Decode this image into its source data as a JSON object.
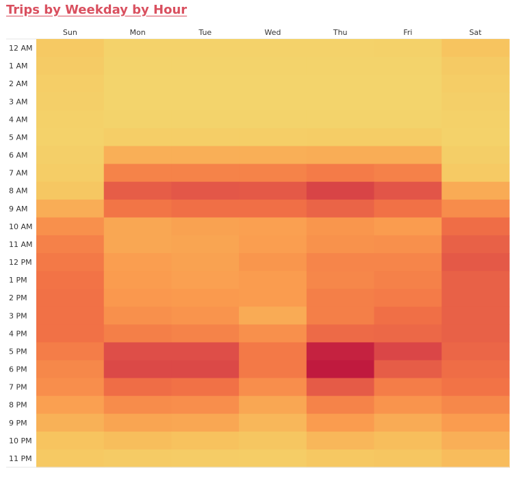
{
  "chart_data": {
    "type": "heatmap",
    "title": "Trips by Weekday by Hour",
    "columns": [
      "Sun",
      "Mon",
      "Tue",
      "Wed",
      "Thu",
      "Fri",
      "Sat"
    ],
    "rows": [
      "12 AM",
      "1 AM",
      "2 AM",
      "3 AM",
      "4 AM",
      "5 AM",
      "6 AM",
      "7 AM",
      "8 AM",
      "9 AM",
      "10 AM",
      "11 AM",
      "12 PM",
      "1 PM",
      "2 PM",
      "3 PM",
      "4 PM",
      "5 PM",
      "6 PM",
      "7 PM",
      "8 PM",
      "9 PM",
      "10 PM",
      "11 PM"
    ],
    "values": [
      [
        0.14,
        0.03,
        0.03,
        0.03,
        0.03,
        0.04,
        0.2
      ],
      [
        0.11,
        0.01,
        0.01,
        0.01,
        0.01,
        0.01,
        0.12
      ],
      [
        0.08,
        0.0,
        0.0,
        0.0,
        0.0,
        0.0,
        0.09
      ],
      [
        0.06,
        0.0,
        0.0,
        0.0,
        0.0,
        0.0,
        0.06
      ],
      [
        0.04,
        0.01,
        0.01,
        0.01,
        0.01,
        0.01,
        0.04
      ],
      [
        0.03,
        0.08,
        0.08,
        0.08,
        0.09,
        0.09,
        0.03
      ],
      [
        0.06,
        0.3,
        0.3,
        0.3,
        0.31,
        0.31,
        0.07
      ],
      [
        0.09,
        0.52,
        0.52,
        0.52,
        0.56,
        0.53,
        0.13
      ],
      [
        0.16,
        0.72,
        0.75,
        0.74,
        0.84,
        0.76,
        0.32
      ],
      [
        0.31,
        0.59,
        0.62,
        0.62,
        0.68,
        0.61,
        0.47
      ],
      [
        0.45,
        0.34,
        0.36,
        0.37,
        0.42,
        0.39,
        0.63
      ],
      [
        0.53,
        0.34,
        0.35,
        0.38,
        0.44,
        0.45,
        0.7
      ],
      [
        0.57,
        0.38,
        0.36,
        0.42,
        0.51,
        0.51,
        0.74
      ],
      [
        0.6,
        0.39,
        0.37,
        0.39,
        0.5,
        0.53,
        0.7
      ],
      [
        0.61,
        0.41,
        0.4,
        0.39,
        0.54,
        0.56,
        0.7
      ],
      [
        0.61,
        0.45,
        0.43,
        0.32,
        0.54,
        0.62,
        0.7
      ],
      [
        0.61,
        0.54,
        0.52,
        0.45,
        0.65,
        0.66,
        0.7
      ],
      [
        0.55,
        0.8,
        0.8,
        0.57,
        0.97,
        0.83,
        0.67
      ],
      [
        0.49,
        0.82,
        0.82,
        0.57,
        1.0,
        0.72,
        0.63
      ],
      [
        0.46,
        0.63,
        0.61,
        0.46,
        0.73,
        0.55,
        0.6
      ],
      [
        0.37,
        0.47,
        0.46,
        0.34,
        0.52,
        0.43,
        0.49
      ],
      [
        0.29,
        0.35,
        0.34,
        0.26,
        0.39,
        0.32,
        0.39
      ],
      [
        0.2,
        0.23,
        0.21,
        0.17,
        0.26,
        0.23,
        0.3
      ],
      [
        0.14,
        0.11,
        0.1,
        0.09,
        0.15,
        0.17,
        0.24
      ]
    ],
    "scale": "relative trip volume, 0 = lowest, 1 = highest",
    "color_scale": [
      "#f3d46c",
      "#f7c45f",
      "#fa9a4e",
      "#f27346",
      "#de4e48",
      "#c01a3e"
    ],
    "grid": false,
    "legend": "none"
  }
}
